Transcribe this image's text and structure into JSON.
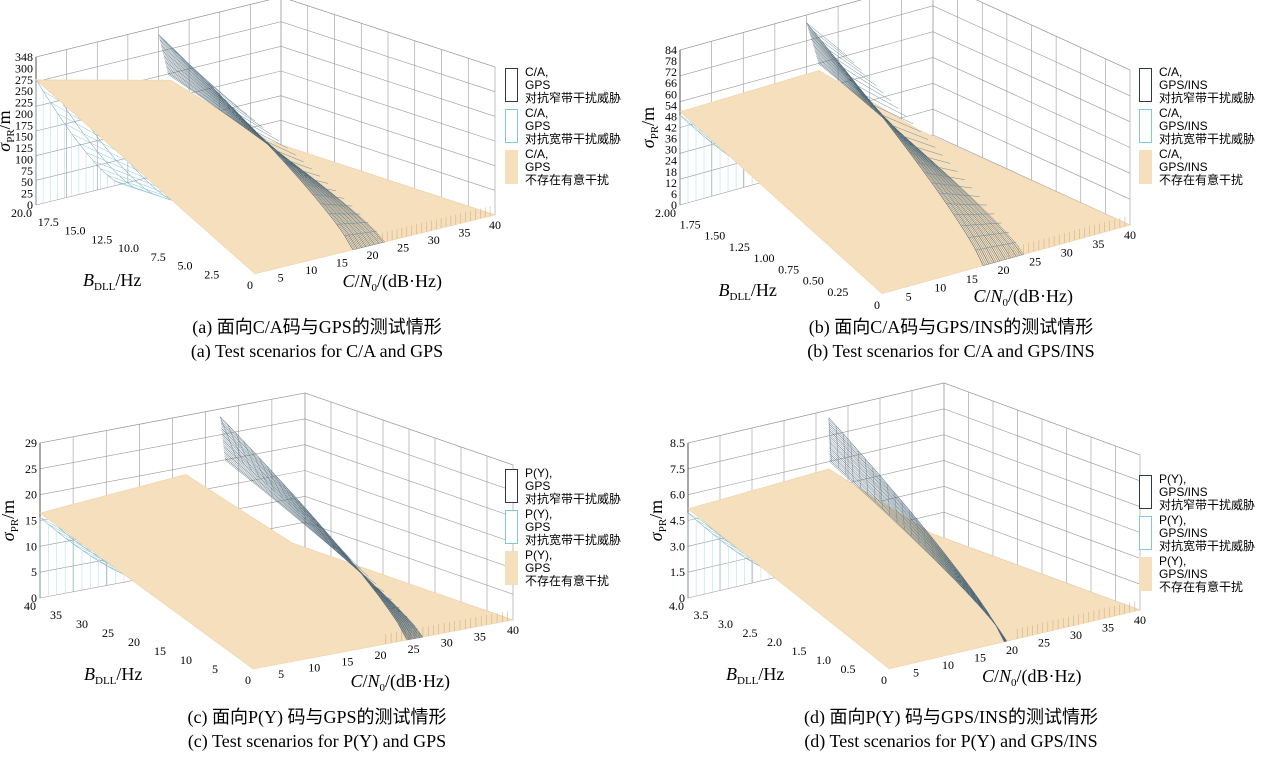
{
  "legend_colors": {
    "narrowband": "#2f3a44",
    "wideband": "#7fc8e0",
    "none": "#f6dfbd"
  },
  "chart_data": [
    {
      "type": "surface",
      "panel": "a",
      "caption_cn": "(a) 面向C/A码与GPS的测试情形",
      "caption_en": "(a) Test scenarios for C/A and GPS",
      "ylabel": "σPR/m",
      "xlabel": "BDLL/Hz",
      "zlabel": "C/N0/(dB·Hz)",
      "y_ticks": [
        "0",
        "25",
        "50",
        "75",
        "100",
        "125",
        "150",
        "175",
        "200",
        "225",
        "250",
        "275",
        "300",
        "348"
      ],
      "b_ticks": [
        "20.0",
        "17.5",
        "15.0",
        "12.5",
        "10.0",
        "7.5",
        "5.0",
        "2.5"
      ],
      "cn_ticks": [
        "0",
        "5",
        "10",
        "15",
        "20",
        "25",
        "30",
        "35",
        "40"
      ],
      "ylim": [
        0,
        348
      ],
      "legend": [
        {
          "lines": [
            "C/A,",
            "GPS",
            "对抗窄带干扰威胁"
          ],
          "kind": "narrowband"
        },
        {
          "lines": [
            "C/A,",
            "GPS",
            "对抗宽带干扰威胁"
          ],
          "kind": "wideband"
        },
        {
          "lines": [
            "C/A,",
            "GPS",
            "不存在有意干扰"
          ],
          "kind": "none"
        }
      ]
    },
    {
      "type": "surface",
      "panel": "b",
      "caption_cn": "(b) 面向C/A码与GPS/INS的测试情形",
      "caption_en": "(b) Test scenarios for C/A and GPS/INS",
      "ylabel": "σPR/m",
      "xlabel": "BDLL/Hz",
      "zlabel": "C/N0/(dB·Hz)",
      "y_ticks": [
        "0",
        "6",
        "12",
        "18",
        "24",
        "30",
        "36",
        "42",
        "48",
        "54",
        "60",
        "66",
        "72",
        "78",
        "84"
      ],
      "b_ticks": [
        "2.00",
        "1.75",
        "1.50",
        "1.25",
        "1.00",
        "0.75",
        "0.50",
        "0.25"
      ],
      "cn_ticks": [
        "0",
        "5",
        "10",
        "15",
        "20",
        "25",
        "30",
        "35",
        "40"
      ],
      "ylim": [
        0,
        84
      ],
      "legend": [
        {
          "lines": [
            "C/A,",
            "GPS/INS",
            "对抗窄带干扰威胁"
          ],
          "kind": "narrowband"
        },
        {
          "lines": [
            "C/A,",
            "GPS/INS",
            "对抗宽带干扰威胁"
          ],
          "kind": "wideband"
        },
        {
          "lines": [
            "C/A,",
            "GPS/INS",
            "不存在有意干扰"
          ],
          "kind": "none"
        }
      ]
    },
    {
      "type": "surface",
      "panel": "c",
      "caption_cn": "(c) 面向P(Y) 码与GPS的测试情形",
      "caption_en": "(c) Test scenarios for P(Y) and GPS",
      "ylabel": "σPR/m",
      "xlabel": "BDLL/Hz",
      "zlabel": "C/N0/(dB·Hz)",
      "y_ticks": [
        "0",
        "5",
        "10",
        "15",
        "20",
        "25",
        "29"
      ],
      "b_ticks": [
        "40",
        "35",
        "30",
        "25",
        "20",
        "15",
        "10",
        "5"
      ],
      "cn_ticks": [
        "0",
        "5",
        "10",
        "15",
        "20",
        "25",
        "30",
        "35",
        "40"
      ],
      "ylim": [
        0,
        29
      ],
      "legend": [
        {
          "lines": [
            "P(Y),",
            "GPS",
            "对抗窄带干扰威胁"
          ],
          "kind": "narrowband"
        },
        {
          "lines": [
            "P(Y),",
            "GPS",
            "对抗宽带干扰威胁"
          ],
          "kind": "wideband"
        },
        {
          "lines": [
            "P(Y),",
            "GPS",
            "不存在有意干扰"
          ],
          "kind": "none"
        }
      ]
    },
    {
      "type": "surface",
      "panel": "d",
      "caption_cn": "(d) 面向P(Y) 码与GPS/INS的测试情形",
      "caption_en": "(d) Test scenarios for P(Y) and GPS/INS",
      "ylabel": "σPR/m",
      "xlabel": "BDLL/Hz",
      "zlabel": "C/N0/(dB·Hz)",
      "y_ticks": [
        "0",
        "1.5",
        "3.0",
        "4.5",
        "6.0",
        "7.5",
        "8.5"
      ],
      "b_ticks": [
        "4.0",
        "3.5",
        "3.0",
        "2.5",
        "2.0",
        "1.5",
        "1.0",
        "0.5"
      ],
      "cn_ticks": [
        "0",
        "5",
        "10",
        "15",
        "20",
        "25",
        "30",
        "35",
        "40"
      ],
      "ylim": [
        0,
        8.5
      ],
      "legend": [
        {
          "lines": [
            "P(Y),",
            "GPS/INS",
            "对抗窄带干扰威胁"
          ],
          "kind": "narrowband"
        },
        {
          "lines": [
            "P(Y),",
            "GPS/INS",
            "对抗宽带干扰威胁"
          ],
          "kind": "wideband"
        },
        {
          "lines": [
            "P(Y),",
            "GPS/INS",
            "不存在有意干扰"
          ],
          "kind": "none"
        }
      ]
    }
  ]
}
